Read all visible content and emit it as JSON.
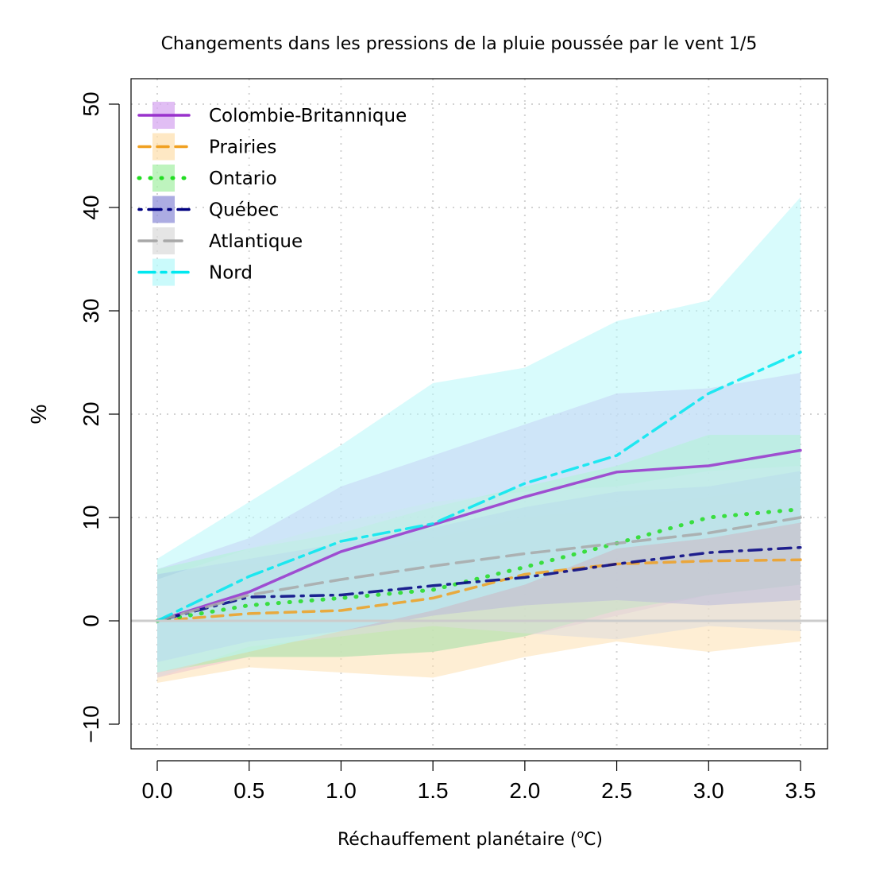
{
  "chart_data": {
    "type": "line",
    "title": "Changements dans les pressions de la pluie poussée par le vent 1/5",
    "xlabel": "Réchauffement planétaire (",
    "xlabel_sup": "o",
    "xlabel_end": "C)",
    "ylabel": "%",
    "x": [
      0.0,
      0.5,
      1.0,
      1.5,
      2.0,
      2.5,
      3.0,
      3.5
    ],
    "x_tick_labels": [
      "0.0",
      "0.5",
      "1.0",
      "1.5",
      "2.0",
      "2.5",
      "3.0",
      "3.5"
    ],
    "y_ticks": [
      -10,
      0,
      10,
      20,
      30,
      40,
      50
    ],
    "y_tick_labels": [
      "-10",
      "0",
      "10",
      "20",
      "30",
      "40",
      "50"
    ],
    "xlim": [
      -0.15,
      3.65
    ],
    "ylim": [
      -12.5,
      52.5
    ],
    "grid": true,
    "reference_line_y": 0,
    "legend_position": "top-left",
    "series": [
      {
        "name": "Colombie-Britannique",
        "color": "#9932cc",
        "fill": "#d7a8f0",
        "dash": "solid",
        "values": [
          0,
          2.8,
          6.7,
          9.3,
          12,
          14.4,
          15,
          16.5
        ],
        "lower": [
          -5.5,
          -3.5,
          -3.5,
          -3,
          -1.5,
          0.5,
          2.5,
          3.5
        ],
        "upper": [
          5,
          8,
          13,
          16,
          19,
          22,
          22.5,
          24
        ]
      },
      {
        "name": "Prairies",
        "color": "#f0a020",
        "fill": "#fde0b0",
        "dash": "dashed",
        "values": [
          0,
          0.7,
          1,
          2.2,
          4.5,
          5.5,
          5.8,
          5.9
        ],
        "lower": [
          -6,
          -4.5,
          -5,
          -5.5,
          -3.5,
          -2,
          -3,
          -2
        ],
        "upper": [
          4.5,
          5.5,
          6.5,
          8,
          10,
          11,
          12,
          13
        ]
      },
      {
        "name": "Ontario",
        "color": "#22dd22",
        "fill": "#a8f0a8",
        "dash": "dotted",
        "values": [
          0,
          1.5,
          2.2,
          3,
          5.2,
          7.5,
          10,
          10.8
        ],
        "lower": [
          -5,
          -3.5,
          -3.5,
          -3,
          -1.5,
          1,
          2.5,
          3.5
        ],
        "upper": [
          5,
          7,
          8.5,
          11,
          13,
          15,
          18,
          18
        ]
      },
      {
        "name": "Québec",
        "color": "#000080",
        "fill": "#9090d8",
        "dash": "dashdot",
        "values": [
          0,
          2.3,
          2.5,
          3.4,
          4.2,
          5.5,
          6.6,
          7.1
        ],
        "lower": [
          -4,
          -2,
          -1,
          0.5,
          1.5,
          2,
          1.5,
          2
        ],
        "upper": [
          4.5,
          6,
          7.5,
          9,
          11,
          12.5,
          13,
          14.5
        ]
      },
      {
        "name": "Atlantique",
        "color": "#a8a8a8",
        "fill": "#dcdcdc",
        "dash": "longdash",
        "values": [
          0,
          2.5,
          4,
          5.3,
          6.5,
          7.5,
          8.5,
          10
        ],
        "lower": [
          -5.5,
          -2.5,
          -1.5,
          -0.5,
          -1.2,
          -1.8,
          -0.5,
          -1
        ],
        "upper": [
          4,
          7,
          9.5,
          11.5,
          12.5,
          13,
          14.5,
          15
        ]
      },
      {
        "name": "Nord",
        "color": "#00e8f0",
        "fill": "#b8f8fa",
        "dash": "twodash",
        "values": [
          0,
          4.3,
          7.7,
          9.4,
          13.3,
          16,
          22,
          26
        ],
        "lower": [
          -5,
          -3,
          -1,
          1,
          3.5,
          7,
          8,
          9.5
        ],
        "upper": [
          6,
          11.5,
          17,
          23,
          24.5,
          29,
          31,
          41
        ]
      }
    ]
  }
}
